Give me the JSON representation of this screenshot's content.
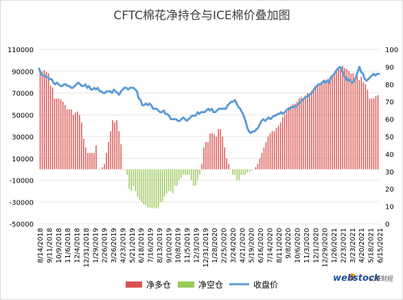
{
  "chart_data": {
    "type": "bar+line",
    "title": "CFTC棉花净持仓与ICE棉价叠加图",
    "left_axis": {
      "ylim": [
        -50000,
        110000
      ],
      "ticks": [
        "110000",
        "90000",
        "70000",
        "50000",
        "30000",
        "10000",
        "-10000",
        "-30000",
        "-50000"
      ]
    },
    "right_axis": {
      "ylim": [
        0,
        100
      ],
      "ticks": [
        "100",
        "90",
        "80",
        "70",
        "60",
        "50",
        "40",
        "30",
        "20",
        "10",
        "0"
      ]
    },
    "x_tick_labels": [
      "8/14/2018",
      "9/11/2018",
      "10/9/2018",
      "11/6/2018",
      "12/4/2018",
      "12/31/2018",
      "1/29/2019",
      "2/26/2019",
      "3/26/2019",
      "4/23/2019",
      "5/21/2019",
      "6/18/2019",
      "7/16/2019",
      "8/13/2019",
      "9/10/2019",
      "10/8/2019",
      "11/5/2019",
      "12/3/2019",
      "12/31/2019",
      "1/28/2020",
      "2/25/2020",
      "3/24/2020",
      "4/21/2020",
      "5/19/2020",
      "6/16/2020",
      "7/14/2020",
      "8/11/2020",
      "9/8/2020",
      "10/6/2020",
      "11/3/2020",
      "12/1/2020",
      "12/29/2020",
      "1/26/2021",
      "2/23/2021",
      "3/23/2021",
      "4/20/2021",
      "5/18/2021",
      "6/15/2021"
    ],
    "series": [
      {
        "name": "净多仓",
        "kind": "bar",
        "axis": "left",
        "color": "#d9534f",
        "values": [
          90000,
          90000,
          91000,
          89000,
          88000,
          77000,
          75000,
          65000,
          65000,
          65000,
          64000,
          62000,
          59000,
          55000,
          55000,
          55000,
          50000,
          52000,
          53000,
          50000,
          43000,
          28000,
          20000,
          15000,
          15000,
          15000,
          15000,
          22000,
          0,
          0,
          2000,
          5000,
          15000,
          25000,
          35000,
          45000,
          43000,
          45000,
          35000,
          23000,
          0,
          0,
          -5000,
          -18000,
          -20000,
          -15000,
          -20000,
          -25000,
          -28000,
          -30000,
          -32000,
          -33000,
          -35000,
          -35000,
          -36000,
          -35000,
          -36000,
          -35000,
          -30000,
          -30000,
          -25000,
          -22000,
          -20000,
          -20000,
          -22000,
          -15000,
          -15000,
          -10000,
          -8000,
          -5000,
          -5000,
          -5000,
          -5000,
          -10000,
          -15000,
          -15000,
          -10000,
          -5000,
          5000,
          20000,
          25000,
          25000,
          33000,
          33000,
          32000,
          30000,
          37000,
          37000,
          30000,
          20000,
          10000,
          5000,
          0,
          -5000,
          -5000,
          -10000,
          -10000,
          -5000,
          -5000,
          -5000,
          -3000,
          -2000,
          -1000,
          0,
          2000,
          5000,
          10000,
          15000,
          20000,
          25000,
          30000,
          33000,
          35000,
          35000,
          38000,
          40000,
          43000,
          48000,
          50000,
          55000,
          57000,
          58000,
          60000,
          60000,
          62000,
          65000,
          66000,
          65000,
          67000,
          70000,
          70000,
          72000,
          73000,
          75000,
          77000,
          78000,
          80000,
          82000,
          82000,
          83000,
          85000,
          85000,
          88000,
          90000,
          92000,
          94000,
          95000,
          93000,
          92000,
          90000,
          88000,
          88000,
          85000,
          85000,
          82000,
          85000,
          80000,
          78000,
          73000,
          65000,
          65000,
          65000,
          67000,
          68000
        ]
      },
      {
        "name": "净空仓",
        "kind": "bar",
        "axis": "left",
        "color": "#9bc95a"
      },
      {
        "name": "收盘价",
        "kind": "line",
        "axis": "right",
        "color": "#5b9bd5",
        "values": [
          89,
          86,
          85,
          85,
          84,
          84,
          83,
          83,
          81,
          80,
          81,
          80,
          79,
          79,
          80,
          80,
          79,
          79,
          78,
          78,
          79,
          80,
          81,
          80,
          79,
          79,
          80,
          78,
          79,
          77,
          77,
          78,
          77,
          78,
          76,
          76,
          75,
          75,
          76,
          76,
          76,
          75,
          77,
          76,
          75,
          74,
          76,
          77,
          78,
          78,
          77,
          78,
          78,
          78,
          77,
          76,
          72,
          71,
          68,
          68,
          69,
          68,
          69,
          68,
          66,
          66,
          66,
          65,
          64,
          64,
          65,
          63,
          63,
          62,
          60,
          60,
          60,
          60,
          59,
          59,
          60,
          61,
          60,
          59,
          60,
          61,
          62,
          62,
          62,
          64,
          63,
          64,
          64,
          64,
          65,
          66,
          65,
          66,
          64,
          64,
          65,
          66,
          66,
          66,
          66,
          66,
          68,
          69,
          70,
          70,
          71,
          69,
          67,
          66,
          64,
          62,
          59,
          55,
          53,
          52,
          53,
          53,
          54,
          55,
          57,
          59,
          60,
          59,
          60,
          61,
          60,
          61,
          62,
          62,
          63,
          63,
          64,
          63,
          64,
          65,
          66,
          66,
          67,
          67,
          67,
          68,
          69,
          70,
          71,
          72,
          73,
          73,
          74,
          75,
          76,
          78,
          79,
          80,
          80,
          81,
          82,
          81,
          82,
          81,
          84,
          85,
          86,
          88,
          89,
          90,
          89,
          86,
          84,
          82,
          83,
          82,
          81,
          82,
          84,
          87,
          90,
          87,
          86,
          83,
          82,
          83,
          84,
          85,
          86,
          85,
          86,
          86
        ]
      }
    ],
    "legend_position": "bottom"
  },
  "logo": {
    "brand_web": "web",
    "brand_stock": "stock",
    "tagline": "文華財經"
  }
}
